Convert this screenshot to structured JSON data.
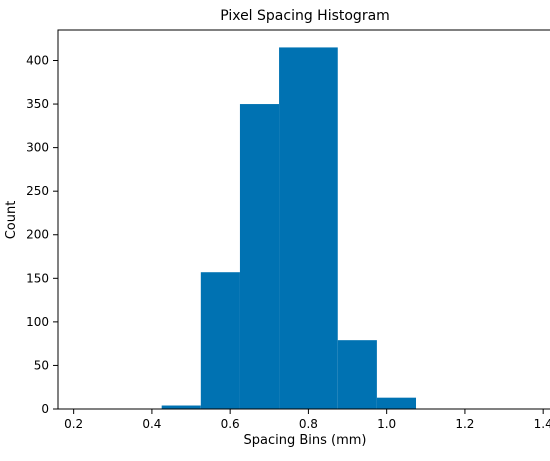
{
  "chart_data": {
    "type": "bar",
    "title": "Pixel Spacing Histogram",
    "xlabel": "Spacing Bins (mm)",
    "ylabel": "Count",
    "bins": [
      {
        "x0": 0.425,
        "x1": 0.525,
        "count": 4
      },
      {
        "x0": 0.525,
        "x1": 0.625,
        "count": 157
      },
      {
        "x0": 0.625,
        "x1": 0.725,
        "count": 350
      },
      {
        "x0": 0.725,
        "x1": 0.875,
        "count": 415
      },
      {
        "x0": 0.875,
        "x1": 0.975,
        "count": 79
      },
      {
        "x0": 0.975,
        "x1": 1.075,
        "count": 13
      }
    ],
    "xlim": [
      0.16,
      1.42
    ],
    "ylim": [
      0,
      435
    ],
    "xticks": [
      0.2,
      0.4,
      0.6,
      0.8,
      1.0,
      1.2,
      1.4
    ],
    "yticks": [
      0,
      50,
      100,
      150,
      200,
      250,
      300,
      350,
      400
    ],
    "bar_color": "#0072b2",
    "grid": false,
    "legend": "none"
  }
}
